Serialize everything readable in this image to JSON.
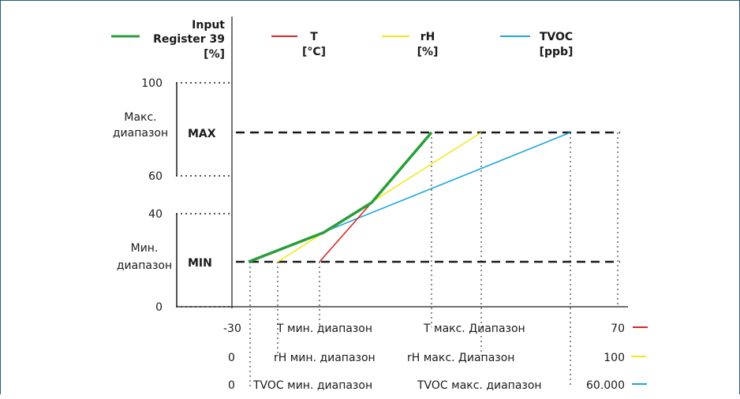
{
  "chart_data": {
    "type": "line",
    "legend": {
      "input": [
        "Input",
        "Register 39",
        "[%]"
      ],
      "t": [
        "T",
        "[°C]"
      ],
      "rh": [
        "rH",
        "[%]"
      ],
      "tvoc": [
        "TVOC",
        "[ppb]"
      ]
    },
    "y_axis": {
      "ticks": [
        "100",
        "60",
        "40",
        "0"
      ],
      "max_range_label": [
        "Макс.",
        "диапазон"
      ],
      "min_range_label": [
        "Мин.",
        "диапазон"
      ],
      "max_label": "MAX",
      "min_label": "MIN"
    },
    "rows": {
      "t": {
        "start": "-30",
        "min": "T мин. диапазон",
        "max": "T макс. Диапазон",
        "end": "70"
      },
      "rh": {
        "start": "0",
        "min": "rH мин. диапазон",
        "max": "rH макс. Диапазон",
        "end": "100"
      },
      "tvoc": {
        "start": "0",
        "min": "TVOC мин. диапазон",
        "max": "TVOC макс. диапазон",
        "end": "60.000"
      }
    },
    "series": [
      {
        "key": "input",
        "color": "#2a9d3a",
        "points": [
          [
            0.05,
            0.35
          ],
          [
            0.24,
            0.55
          ],
          [
            0.52,
            0.75
          ]
        ]
      },
      {
        "key": "t",
        "color": "#d62728",
        "points": [
          [
            0.25,
            0.35
          ],
          [
            0.52,
            0.75
          ]
        ]
      },
      {
        "key": "rh",
        "color": "#f5e81c",
        "points": [
          [
            0.15,
            0.35
          ],
          [
            0.64,
            0.75
          ]
        ]
      },
      {
        "key": "tvoc",
        "color": "#1ea5dc",
        "points": [
          [
            0.05,
            0.35
          ],
          [
            0.88,
            0.75
          ]
        ]
      }
    ]
  }
}
